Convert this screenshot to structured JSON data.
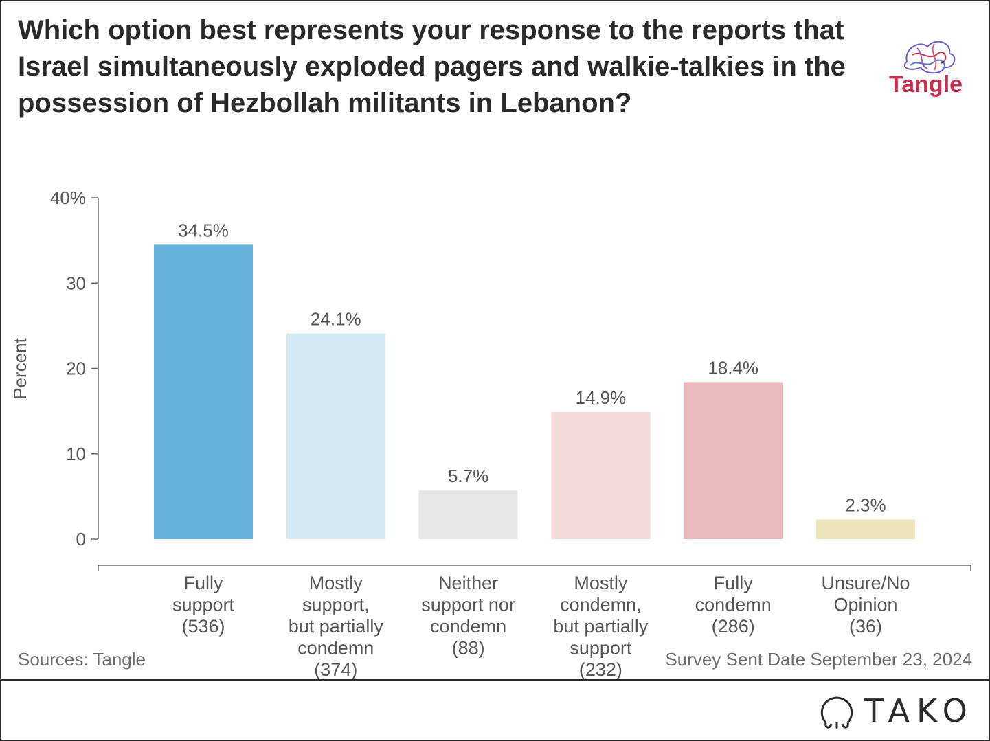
{
  "title": "Which option best represents your response to the reports that Israel simultaneously exploded pagers and walkie-talkies in the possession of Hezbollah militants in Lebanon?",
  "brand_logo_text": "Tangle",
  "source": "Sources: Tangle",
  "date_note": "Survey Sent Date September 23, 2024",
  "footer_brand": "TAKO",
  "chart_data": {
    "type": "bar",
    "title": "Which option best represents your response to the reports that Israel simultaneously exploded pagers and walkie-talkies in the possession of Hezbollah militants in Lebanon?",
    "xlabel": "",
    "ylabel": "Percent",
    "ylim": [
      0,
      40
    ],
    "yticks": [
      0,
      10,
      20,
      30,
      40
    ],
    "ytick_labels": [
      "0",
      "10",
      "20",
      "30",
      "40%"
    ],
    "grid": false,
    "categories": [
      [
        "Fully",
        "support",
        "(536)"
      ],
      [
        "Mostly",
        "support,",
        "but partially",
        "condemn",
        "(374)"
      ],
      [
        "Neither",
        "support nor",
        "condemn",
        "(88)"
      ],
      [
        "Mostly",
        "condemn,",
        "but partially",
        "support",
        "(232)"
      ],
      [
        "Fully",
        "condemn",
        "(286)"
      ],
      [
        "Unsure/No",
        "Opinion",
        "(36)"
      ]
    ],
    "values": [
      34.5,
      24.1,
      5.7,
      14.9,
      18.4,
      2.3
    ],
    "data_labels": [
      "34.5%",
      "24.1%",
      "5.7%",
      "14.9%",
      "18.4%",
      "2.3%"
    ],
    "colors": [
      "#63b2dc",
      "#d5e9f5",
      "#e6e6e6",
      "#f4d9db",
      "#eab9bb",
      "#ece5bb"
    ]
  }
}
